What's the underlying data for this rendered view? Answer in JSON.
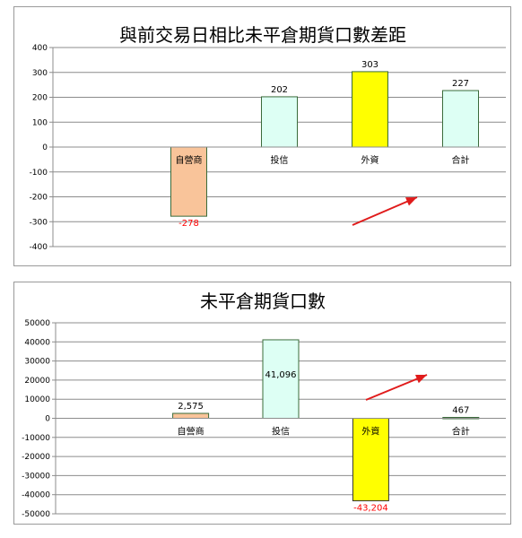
{
  "chart_data": [
    {
      "type": "bar",
      "title": "與前交易日相比未平倉期貨口數差距",
      "categories": [
        "自營商",
        "投信",
        "外資",
        "合計"
      ],
      "values": [
        -278,
        202,
        303,
        227
      ],
      "value_labels": [
        "-278",
        "202",
        "303",
        "227"
      ],
      "ylim": [
        -400,
        400
      ],
      "yticks": [
        "400",
        "300",
        "200",
        "100",
        "0",
        "-100",
        "-200",
        "-300",
        "-400"
      ],
      "grid": true,
      "legend": "none",
      "colors": [
        "#f9c49a",
        "#ddfff4",
        "#ffff00",
        "#ddfff4"
      ],
      "negative_label_color": "#ff0000"
    },
    {
      "type": "bar",
      "title": "未平倉期貨口數",
      "categories": [
        "自營商",
        "投信",
        "外資",
        "合計"
      ],
      "values": [
        2575,
        41096,
        -43204,
        467
      ],
      "value_labels": [
        "2,575",
        "41,096",
        "-43,204",
        "467"
      ],
      "ylim": [
        -50000,
        50000
      ],
      "yticks": [
        "50000",
        "40000",
        "30000",
        "20000",
        "10000",
        "0",
        "-10000",
        "-20000",
        "-30000",
        "-40000",
        "-50000"
      ],
      "grid": true,
      "legend": "none",
      "colors": [
        "#f9c49a",
        "#ddfff4",
        "#ffff00",
        "#ddfff4"
      ],
      "negative_label_color": "#ff0000"
    }
  ]
}
